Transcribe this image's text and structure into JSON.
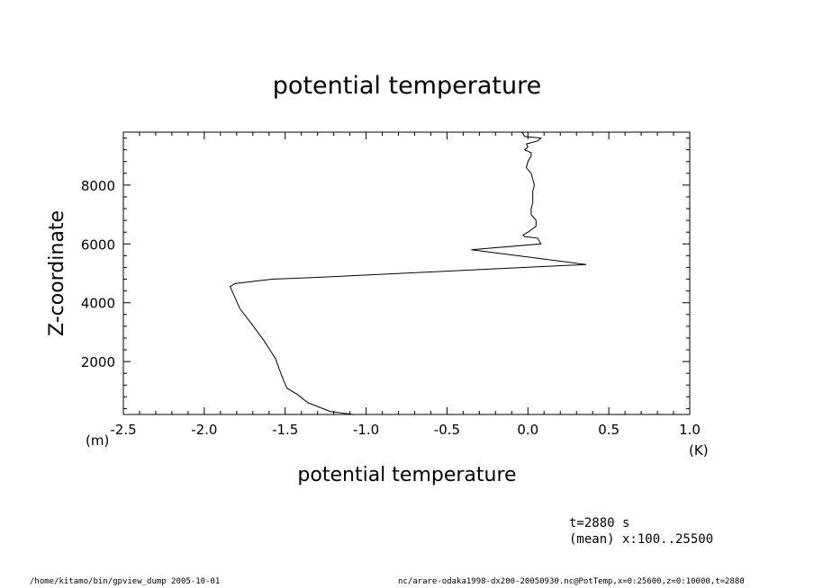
{
  "chart_data": {
    "type": "line",
    "title": "potential temperature",
    "xlabel": "potential temperature",
    "ylabel": "Z-coordinate",
    "x_unit": "(K)",
    "y_unit": "(m)",
    "xlim": [
      -2.5,
      1.0
    ],
    "ylim": [
      200,
      9800
    ],
    "x_ticks": [
      "-2.5",
      "-2.0",
      "-1.5",
      "-1.0",
      "-0.5",
      "0.0",
      "0.5",
      "1.0"
    ],
    "x_tick_values": [
      -2.5,
      -2.0,
      -1.5,
      -1.0,
      -0.5,
      0.0,
      0.5,
      1.0
    ],
    "y_ticks": [
      "2000",
      "4000",
      "6000",
      "8000"
    ],
    "y_tick_values": [
      2000,
      4000,
      6000,
      8000
    ],
    "grid": false,
    "series": [
      {
        "x": [
          -1.08,
          -1.22,
          -1.36,
          -1.43,
          -1.49,
          -1.52,
          -1.56,
          -1.63,
          -1.71,
          -1.78,
          -1.82,
          -1.84,
          -1.81,
          -1.58,
          -1.35,
          0.36,
          -0.35,
          0.08,
          0.06,
          -0.02,
          -0.03,
          0.0,
          0.05,
          0.05,
          0.02,
          0.02,
          0.03,
          0.03,
          0.04,
          0.03,
          0.02,
          -0.01,
          0.0,
          0.02,
          0.02,
          -0.02,
          0.0,
          -0.01,
          0.06,
          0.08,
          -0.02,
          -0.03,
          -0.04
        ],
        "y": [
          200,
          300,
          600,
          900,
          1100,
          1500,
          2100,
          2700,
          3300,
          3800,
          4300,
          4550,
          4650,
          4800,
          4850,
          5300,
          5800,
          6000,
          6200,
          6250,
          6300,
          6400,
          6600,
          6800,
          7000,
          7200,
          7400,
          7800,
          8000,
          8200,
          8400,
          8600,
          8800,
          9000,
          9100,
          9200,
          9300,
          9400,
          9500,
          9600,
          9650,
          9750,
          9800
        ]
      }
    ]
  },
  "info": {
    "time": "t=2880 s",
    "mean": "(mean) x:100..25500"
  },
  "footer": {
    "left": "/home/kitamo/bin/gpview_dump  2005-10-01",
    "right": "nc/arare-odaka1998-dx200-20050930.nc@PotTemp,x=0:25600,z=0:10000,t=2880"
  }
}
